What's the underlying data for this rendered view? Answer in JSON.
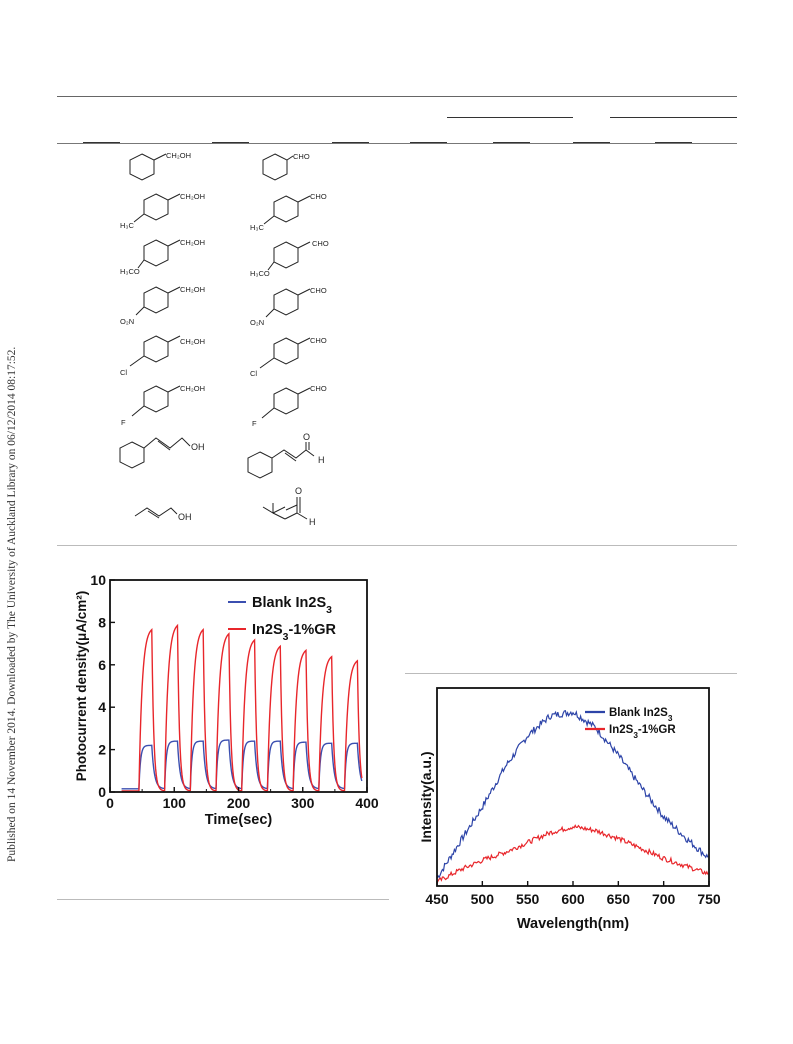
{
  "sidebar": {
    "published_text": "Published on 14 November 2014. Downloaded by The University of Auckland Library on 06/12/2014 08:17:52."
  },
  "table": {
    "rows": [
      {
        "substrate": "benzyl-alcohol",
        "substrate_group": "CH₂OH",
        "product_group": "CHO"
      },
      {
        "substrate": "4-methylbenzyl-alcohol",
        "substituent": "H₃C",
        "substrate_group": "CH₂OH",
        "product_group": "CHO"
      },
      {
        "substrate": "4-methoxybenzyl-alcohol",
        "substituent": "H₃CO",
        "substrate_group": "CH₂OH",
        "product_group": "CHO"
      },
      {
        "substrate": "4-nitrobenzyl-alcohol",
        "substituent": "O₂N",
        "substrate_group": "CH₂OH",
        "product_group": "CHO"
      },
      {
        "substrate": "4-chlorobenzyl-alcohol",
        "substituent": "Cl",
        "substrate_group": "CH₂OH",
        "product_group": "CHO"
      },
      {
        "substrate": "4-fluorobenzyl-alcohol",
        "substituent": "F",
        "substrate_group": "CH₂OH",
        "product_group": "CHO"
      },
      {
        "substrate": "cinnamyl-alcohol",
        "substrate_group": "OH",
        "product_o": "O",
        "product_h": "H"
      },
      {
        "substrate": "crotyl-alcohol",
        "substrate_group": "OH",
        "product_o": "O",
        "product_h": "H"
      }
    ]
  },
  "chart_data": [
    {
      "type": "line",
      "title": "",
      "xlabel": "Time(sec)",
      "ylabel": "Photocurrent density(μA/cm²)",
      "xlim": [
        0,
        400
      ],
      "ylim": [
        0,
        10
      ],
      "xticks": [
        "0",
        "100",
        "200",
        "300",
        "400"
      ],
      "yticks": [
        "0",
        "2",
        "4",
        "6",
        "8",
        "10"
      ],
      "legend_position": "top-right",
      "on_times": [
        45,
        85,
        125,
        165,
        205,
        245,
        285,
        325,
        365
      ],
      "off_times": [
        65,
        105,
        145,
        185,
        225,
        265,
        305,
        345,
        385
      ],
      "series": [
        {
          "name": "Blank In2S3",
          "color": "#3b4fb0",
          "peak_values": [
            2.2,
            2.4,
            2.4,
            2.45,
            2.4,
            2.4,
            2.35,
            2.3,
            2.3
          ],
          "baseline": 0.15
        },
        {
          "name": "In2S3-1%GR",
          "color": "#e8262b",
          "peak_values": [
            7.8,
            8.0,
            7.8,
            7.6,
            7.3,
            7.0,
            6.8,
            6.5,
            6.3
          ],
          "baseline": 0.05
        }
      ]
    },
    {
      "type": "line",
      "title": "",
      "xlabel": "Wavelength(nm)",
      "ylabel": "Intensity(a.u.)",
      "xlim": [
        450,
        750
      ],
      "ylim": [
        0,
        1
      ],
      "xticks": [
        "450",
        "500",
        "550",
        "600",
        "650",
        "700",
        "750"
      ],
      "legend_position": "top-right",
      "series": [
        {
          "name": "Blank In2S3",
          "color": "#2d44a8",
          "x": [
            450,
            475,
            500,
            525,
            550,
            575,
            600,
            625,
            650,
            675,
            700,
            725,
            750
          ],
          "values": [
            0.04,
            0.22,
            0.4,
            0.6,
            0.76,
            0.86,
            0.88,
            0.8,
            0.66,
            0.5,
            0.35,
            0.24,
            0.14
          ]
        },
        {
          "name": "In2S3-1%GR",
          "color": "#e8262b",
          "x": [
            450,
            475,
            500,
            525,
            550,
            575,
            600,
            625,
            650,
            675,
            700,
            725,
            750
          ],
          "values": [
            0.02,
            0.08,
            0.13,
            0.17,
            0.22,
            0.27,
            0.3,
            0.28,
            0.24,
            0.19,
            0.14,
            0.1,
            0.06
          ]
        }
      ]
    }
  ]
}
